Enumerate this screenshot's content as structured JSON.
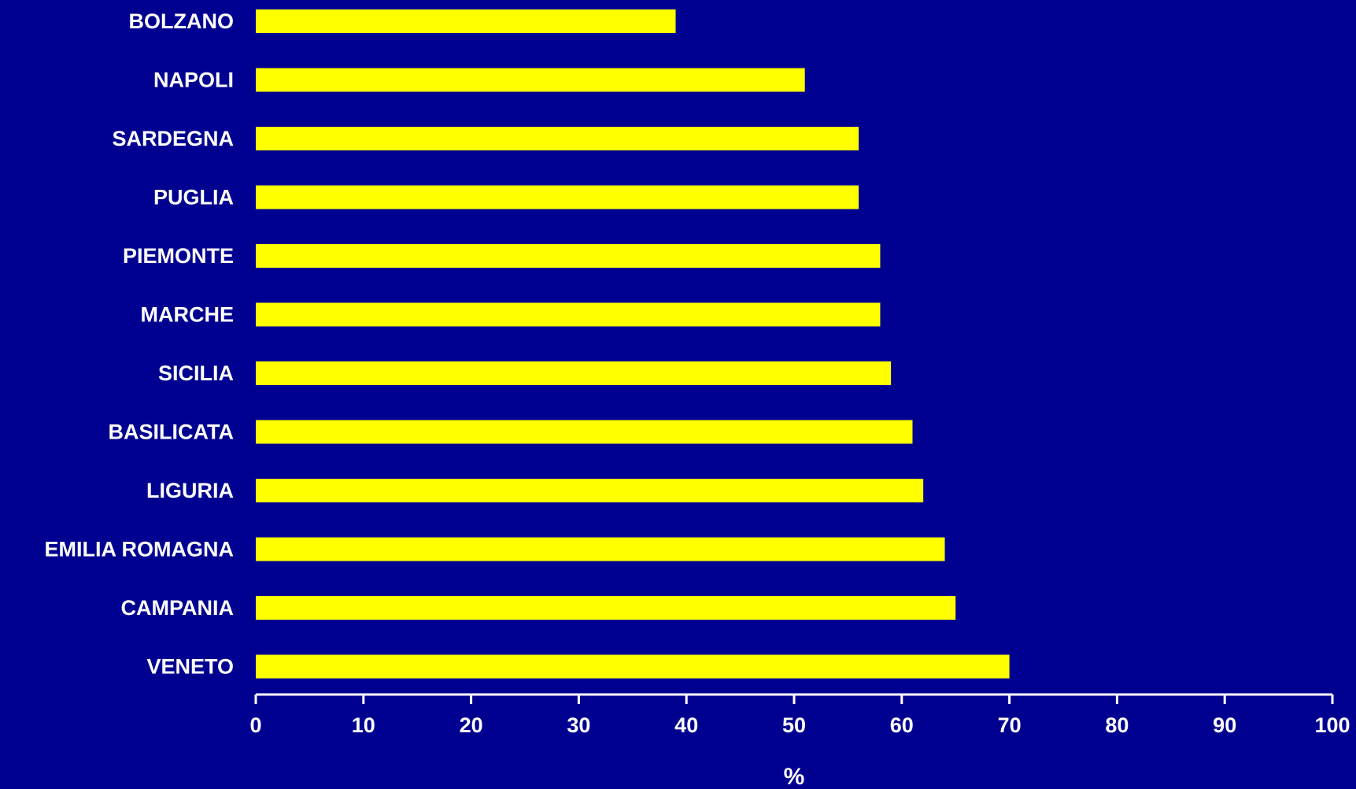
{
  "chart_data": {
    "type": "bar",
    "orientation": "horizontal",
    "categories": [
      "BOLZANO",
      "NAPOLI",
      "SARDEGNA",
      "PUGLIA",
      "PIEMONTE",
      "MARCHE",
      "SICILIA",
      "BASILICATA",
      "LIGURIA",
      "EMILIA ROMAGNA",
      "CAMPANIA",
      "VENETO"
    ],
    "values": [
      39,
      51,
      56,
      56,
      58,
      58,
      59,
      61,
      62,
      64,
      65,
      70
    ],
    "title": "",
    "xlabel": "%",
    "ylabel": "",
    "xlim": [
      0,
      100
    ],
    "xticks": [
      0,
      10,
      20,
      30,
      40,
      50,
      60,
      70,
      80,
      90,
      100
    ],
    "grid": false,
    "legend": "none",
    "colors": {
      "background": "#000090",
      "bar": "#ffff00",
      "text": "#ffffff",
      "axis": "#ffffff"
    }
  }
}
